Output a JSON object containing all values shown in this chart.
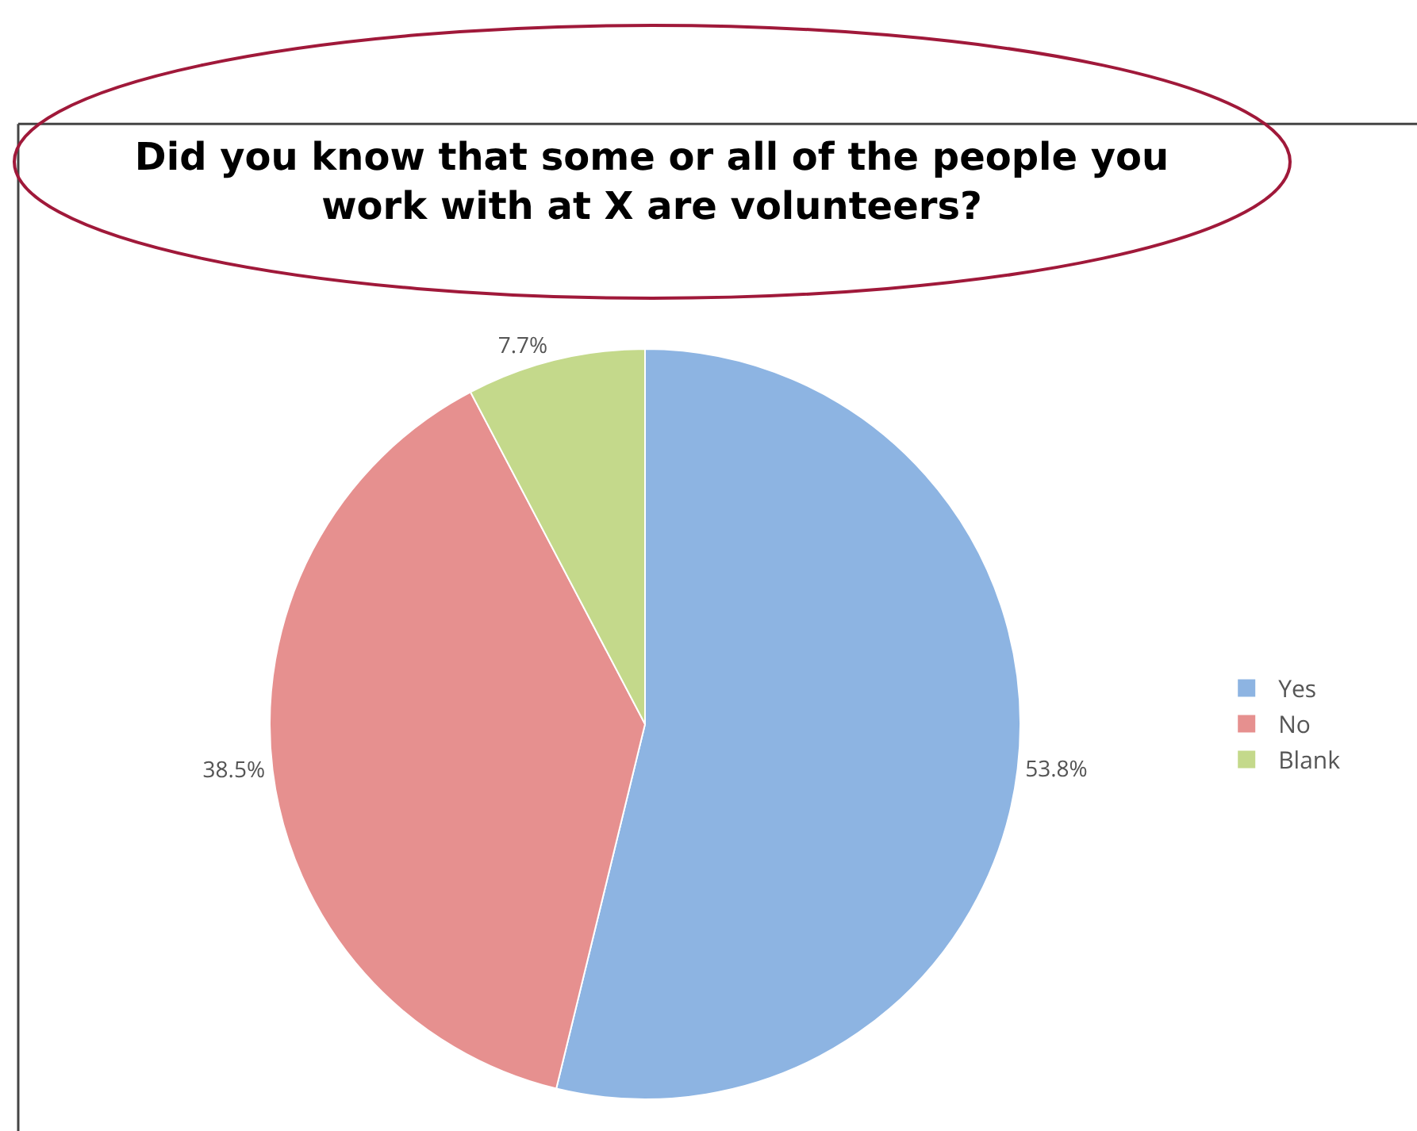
{
  "chart_data": {
    "type": "pie",
    "title": "Did you know that some or all of the people you work with at X are volunteers?",
    "categories": [
      "Yes",
      "No",
      "Blank"
    ],
    "values": [
      53.8,
      38.5,
      7.7
    ],
    "value_labels": [
      "53.8%",
      "38.5%",
      "7.7%"
    ],
    "colors": [
      "#8db4e2",
      "#e6908f",
      "#c4d98b"
    ],
    "legend": "right"
  }
}
